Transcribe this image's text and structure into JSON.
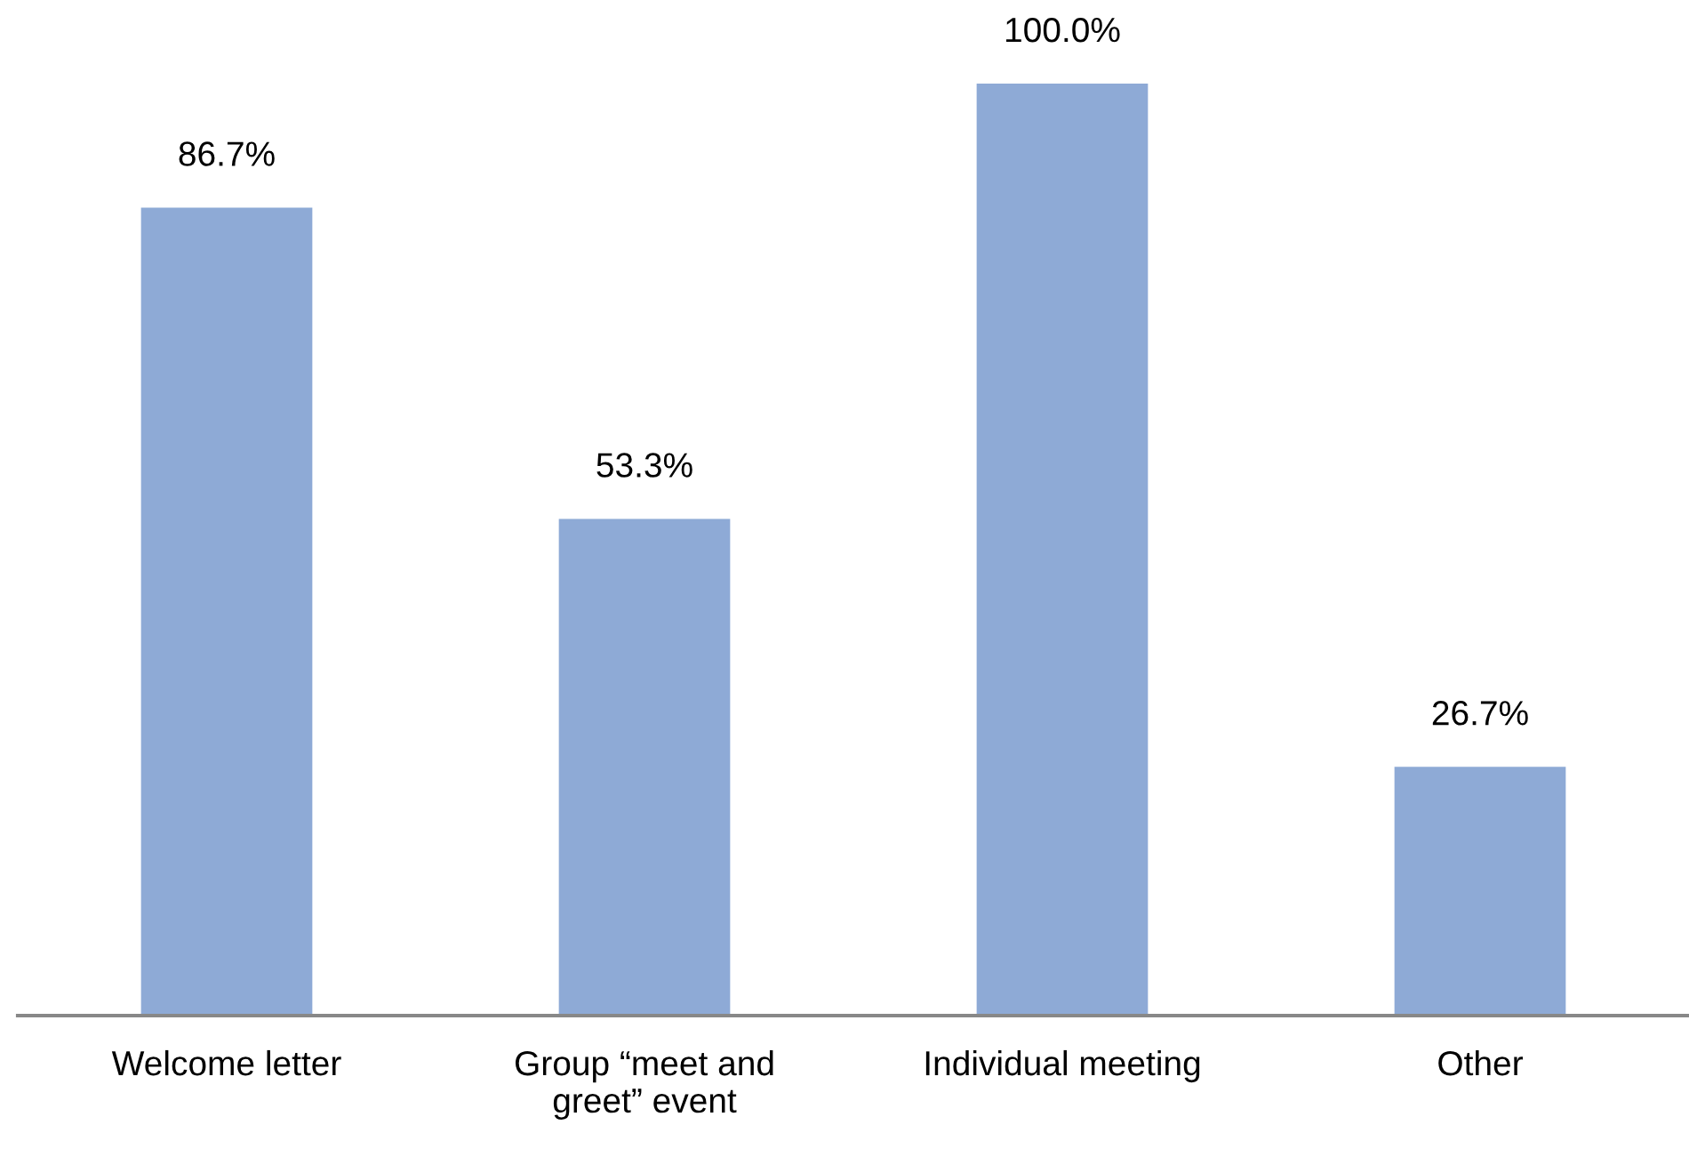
{
  "chart_data": {
    "type": "bar",
    "categories": [
      "Welcome letter",
      "Group “meet and\ngreet” event",
      "Individual meeting",
      "Other"
    ],
    "values": [
      86.7,
      53.3,
      100.0,
      26.7
    ],
    "value_labels": [
      "86.7%",
      "53.3%",
      "100.0%",
      "26.7%"
    ],
    "color": "#8eaad6",
    "grid": false,
    "legend": false
  }
}
